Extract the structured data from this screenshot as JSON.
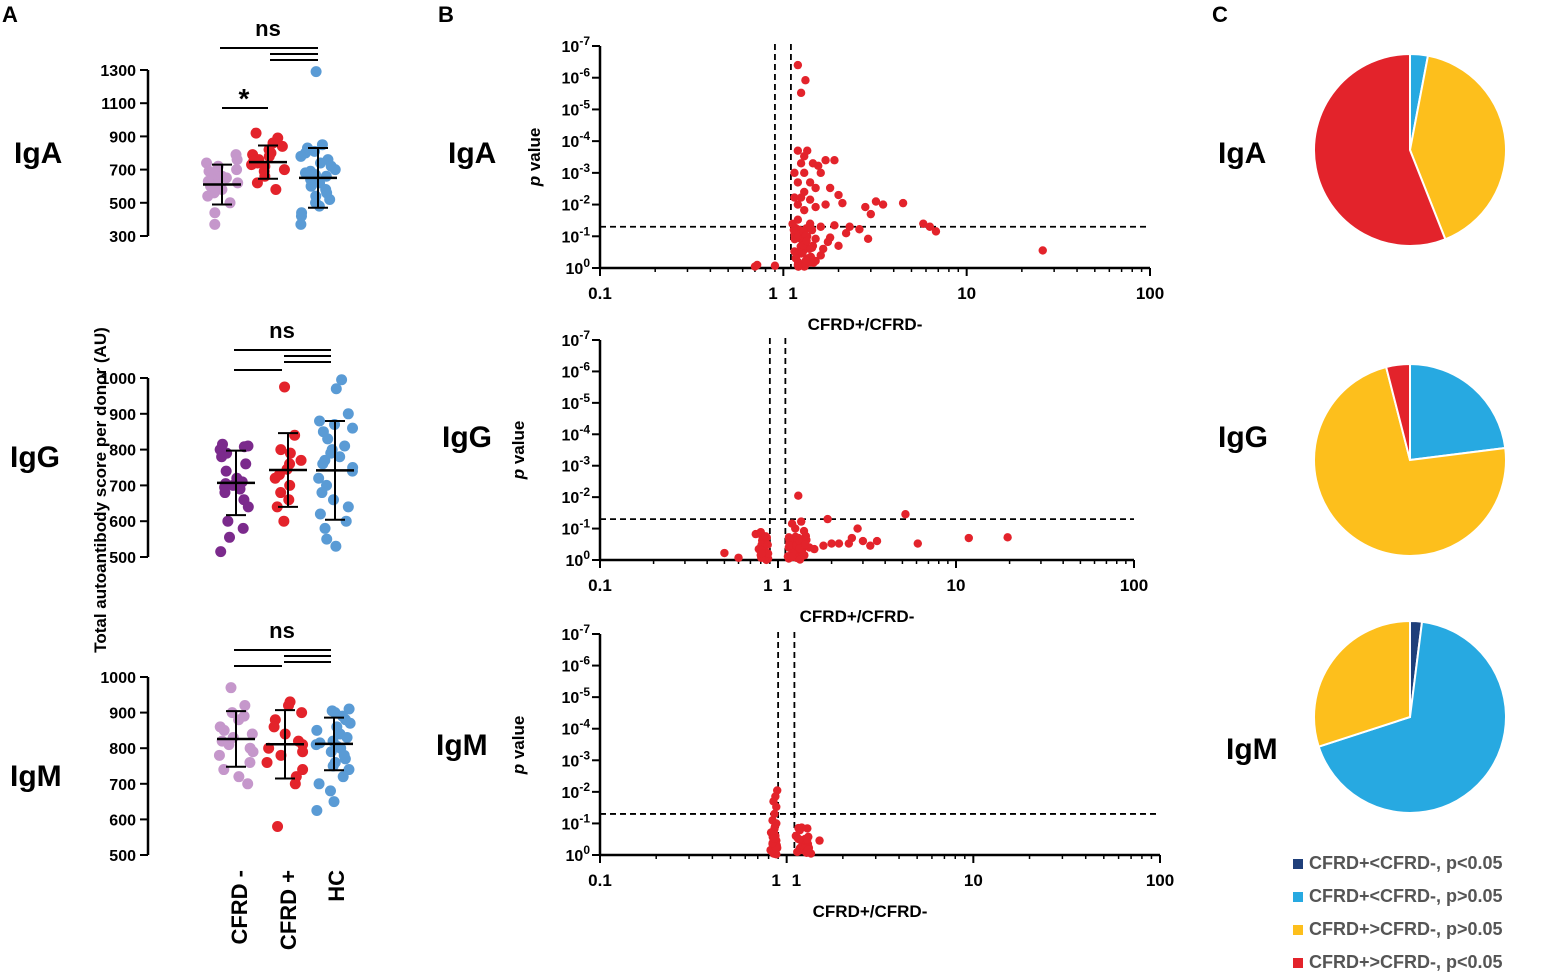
{
  "panels": {
    "a": "A",
    "b": "B",
    "c": "C"
  },
  "colors": {
    "cfrd_minus_iga_igm": "#c597cb",
    "cfrd_minus_igg": "#7b2a8c",
    "cfrd_plus": "#e3232b",
    "hc": "#5a9bd5",
    "pie_dark_blue": "#1f3f7a",
    "pie_light_blue": "#27a9e1",
    "pie_yellow": "#fdbf1c",
    "pie_red": "#e3232b",
    "volcano_point": "#e3232b"
  },
  "panel_a": {
    "y_axis_title": "Total autoantibody score per donor (AU)",
    "categories": [
      "CFRD -",
      "CFRD +",
      "HC"
    ]
  },
  "panel_b": {
    "y_axis_title_italic": "p",
    "y_axis_title_rest": " value",
    "x_axis_title": "CFRD+/CFRD-"
  },
  "legend": [
    {
      "label": "CFRD+<CFRD-, p<0.05",
      "color": "#1f3f7a"
    },
    {
      "label": "CFRD+<CFRD-, p>0.05",
      "color": "#27a9e1"
    },
    {
      "label": "CFRD+>CFRD-, p>0.05",
      "color": "#fdbf1c"
    },
    {
      "label": "CFRD+>CFRD-, p<0.05",
      "color": "#e3232b"
    }
  ],
  "chart_data": [
    {
      "type": "scatter",
      "panel": "A",
      "row_label": "IgA",
      "title": "IgA",
      "xlabel": "",
      "ylabel": "Total autoantibody score per donor (AU)",
      "categories": [
        "CFRD -",
        "CFRD +",
        "HC"
      ],
      "ylim": [
        300,
        1300
      ],
      "yticks": [
        300,
        500,
        700,
        900,
        1100,
        1300
      ],
      "series": [
        {
          "name": "CFRD -",
          "mean": 610,
          "sd": 120,
          "values": [
            790,
            760,
            740,
            720,
            700,
            690,
            680,
            660,
            650,
            640,
            630,
            620,
            610,
            600,
            580,
            560,
            540,
            500,
            440,
            370
          ]
        },
        {
          "name": "CFRD +",
          "mean": 745,
          "sd": 100,
          "values": [
            920,
            890,
            860,
            840,
            820,
            800,
            790,
            780,
            760,
            750,
            740,
            730,
            720,
            700,
            690,
            660,
            620,
            580
          ]
        },
        {
          "name": "HC",
          "mean": 650,
          "sd": 180,
          "values": [
            1290,
            850,
            830,
            810,
            800,
            780,
            760,
            740,
            720,
            700,
            690,
            680,
            670,
            660,
            640,
            620,
            600,
            580,
            560,
            540,
            520,
            500,
            480,
            440,
            420,
            370
          ]
        }
      ],
      "significance": [
        {
          "groups": [
            "CFRD -",
            "CFRD +"
          ],
          "label": "*"
        },
        {
          "groups": [
            "CFRD -",
            "HC"
          ],
          "label": "ns"
        },
        {
          "groups": [
            "CFRD +",
            "HC"
          ],
          "label": ""
        }
      ]
    },
    {
      "type": "scatter",
      "panel": "A",
      "row_label": "IgG",
      "title": "IgG",
      "xlabel": "",
      "ylabel": "Total autoantibody score per donor (AU)",
      "categories": [
        "CFRD -",
        "CFRD +",
        "HC"
      ],
      "ylim": [
        500,
        1000
      ],
      "yticks": [
        500,
        600,
        700,
        800,
        900,
        1000
      ],
      "series": [
        {
          "name": "CFRD -",
          "mean": 707,
          "sd": 90,
          "values": [
            815,
            810,
            808,
            800,
            790,
            780,
            760,
            740,
            720,
            710,
            705,
            700,
            695,
            690,
            680,
            660,
            640,
            600,
            580,
            555,
            515
          ]
        },
        {
          "name": "CFRD +",
          "mean": 743,
          "sd": 103,
          "values": [
            975,
            840,
            800,
            790,
            770,
            760,
            745,
            730,
            720,
            700,
            680,
            660,
            640,
            600
          ]
        },
        {
          "name": "HC",
          "mean": 742,
          "sd": 138,
          "values": [
            995,
            970,
            900,
            880,
            870,
            860,
            850,
            830,
            810,
            800,
            790,
            780,
            770,
            760,
            750,
            740,
            720,
            700,
            680,
            660,
            640,
            620,
            600,
            580,
            550,
            530
          ]
        }
      ],
      "significance": [
        {
          "groups": [
            "CFRD -",
            "HC"
          ],
          "label": "ns"
        },
        {
          "groups": [
            "CFRD -",
            "CFRD +"
          ],
          "label": ""
        },
        {
          "groups": [
            "CFRD +",
            "HC"
          ],
          "label": ""
        }
      ]
    },
    {
      "type": "scatter",
      "panel": "A",
      "row_label": "IgM",
      "title": "IgM",
      "xlabel": "",
      "ylabel": "Total autoantibody score per donor (AU)",
      "categories": [
        "CFRD -",
        "CFRD +",
        "HC"
      ],
      "ylim": [
        500,
        1000
      ],
      "yticks": [
        500,
        600,
        700,
        800,
        900,
        1000
      ],
      "series": [
        {
          "name": "CFRD -",
          "mean": 826,
          "sd": 78,
          "values": [
            970,
            920,
            900,
            890,
            880,
            860,
            850,
            840,
            830,
            820,
            810,
            800,
            790,
            780,
            760,
            740,
            720,
            700
          ]
        },
        {
          "name": "CFRD +",
          "mean": 811,
          "sd": 96,
          "values": [
            930,
            920,
            900,
            880,
            860,
            840,
            820,
            810,
            800,
            790,
            780,
            760,
            740,
            720,
            700,
            580
          ]
        },
        {
          "name": "HC",
          "mean": 812,
          "sd": 74,
          "values": [
            910,
            905,
            900,
            890,
            880,
            870,
            860,
            850,
            840,
            830,
            820,
            815,
            810,
            805,
            800,
            790,
            780,
            770,
            760,
            750,
            740,
            720,
            700,
            680,
            650,
            625
          ]
        }
      ],
      "significance": [
        {
          "groups": [
            "CFRD -",
            "HC"
          ],
          "label": "ns"
        },
        {
          "groups": [
            "CFRD -",
            "CFRD +"
          ],
          "label": ""
        },
        {
          "groups": [
            "CFRD +",
            "HC"
          ],
          "label": ""
        }
      ]
    },
    {
      "type": "scatter",
      "panel": "B",
      "row_label": "IgA",
      "title": "IgA",
      "xlabel": "CFRD+/CFRD-",
      "ylabel": "p value",
      "x_scale": "log",
      "xlim": [
        0.1,
        100
      ],
      "xticks": [
        "0.1",
        "1",
        "1",
        "10",
        "100"
      ],
      "y_scale": "-log10",
      "ylim": [
        1,
        1e-07
      ],
      "yticks": [
        "10^0",
        "10^-1",
        "10^-2",
        "10^-3",
        "10^-4",
        "10^-5",
        "10^-6",
        "10^-7"
      ],
      "threshold_p": 0.05,
      "threshold_fold": [
        0.9,
        1.1
      ],
      "points": [
        [
          0.7,
          0.9
        ],
        [
          0.72,
          0.8
        ],
        [
          0.9,
          0.85
        ],
        [
          1.32,
          1.2e-06
        ],
        [
          1.25,
          3e-06
        ],
        [
          1.2,
          4e-07
        ],
        [
          1.2,
          0.0002
        ],
        [
          1.3,
          0.0003
        ],
        [
          1.35,
          0.0002
        ],
        [
          1.45,
          0.0005
        ],
        [
          1.55,
          0.0006
        ],
        [
          1.7,
          0.0004
        ],
        [
          1.9,
          0.0004
        ],
        [
          1.25,
          0.0005
        ],
        [
          1.6,
          0.001
        ],
        [
          1.3,
          0.001
        ],
        [
          1.15,
          0.001
        ],
        [
          1.2,
          0.002
        ],
        [
          1.4,
          0.002
        ],
        [
          1.5,
          0.003
        ],
        [
          1.3,
          0.004
        ],
        [
          1.8,
          0.003
        ],
        [
          1.25,
          0.006
        ],
        [
          1.4,
          0.007
        ],
        [
          2.0,
          0.005
        ],
        [
          1.15,
          0.006
        ],
        [
          1.2,
          0.01
        ],
        [
          1.3,
          0.015
        ],
        [
          1.5,
          0.012
        ],
        [
          1.7,
          0.01
        ],
        [
          2.1,
          0.009
        ],
        [
          2.8,
          0.012
        ],
        [
          3.2,
          0.008
        ],
        [
          3.5,
          0.01
        ],
        [
          4.5,
          0.009
        ],
        [
          3.0,
          0.02
        ],
        [
          5.8,
          0.04
        ],
        [
          6.3,
          0.05
        ],
        [
          6.8,
          0.07
        ],
        [
          1.2,
          0.03
        ],
        [
          1.4,
          0.04
        ],
        [
          1.6,
          0.05
        ],
        [
          1.9,
          0.045
        ],
        [
          2.3,
          0.05
        ],
        [
          2.6,
          0.06
        ],
        [
          1.15,
          0.08
        ],
        [
          1.25,
          0.09
        ],
        [
          1.35,
          0.1
        ],
        [
          1.5,
          0.12
        ],
        [
          1.8,
          0.11
        ],
        [
          2.2,
          0.08
        ],
        [
          2.9,
          0.12
        ],
        [
          1.3,
          0.15
        ],
        [
          1.45,
          0.2
        ],
        [
          1.65,
          0.25
        ],
        [
          2.0,
          0.2
        ],
        [
          1.15,
          0.3
        ],
        [
          1.25,
          0.35
        ],
        [
          1.35,
          0.5
        ],
        [
          1.5,
          0.6
        ],
        [
          1.2,
          0.8
        ],
        [
          1.3,
          0.9
        ],
        [
          1.6,
          0.4
        ],
        [
          1.75,
          0.15
        ],
        [
          26,
          0.28
        ]
      ],
      "extra_points_approx": 40
    },
    {
      "type": "scatter",
      "panel": "B",
      "row_label": "IgG",
      "title": "IgG",
      "xlabel": "CFRD+/CFRD-",
      "ylabel": "p value",
      "x_scale": "log",
      "xlim": [
        0.1,
        100
      ],
      "xticks": [
        "0.1",
        "1",
        "1",
        "10",
        "100"
      ],
      "y_scale": "-log10",
      "ylim": [
        1,
        1e-07
      ],
      "yticks": [
        "10^0",
        "10^-1",
        "10^-2",
        "10^-3",
        "10^-4",
        "10^-5",
        "10^-6",
        "10^-7"
      ],
      "threshold_p": 0.05,
      "threshold_fold": [
        0.9,
        1.1
      ],
      "points": [
        [
          0.5,
          0.6
        ],
        [
          0.6,
          0.85
        ],
        [
          0.75,
          0.15
        ],
        [
          0.8,
          0.13
        ],
        [
          0.82,
          0.2
        ],
        [
          0.85,
          0.3
        ],
        [
          0.78,
          0.45
        ],
        [
          0.83,
          0.5
        ],
        [
          0.87,
          0.6
        ],
        [
          0.8,
          0.7
        ],
        [
          0.86,
          0.8
        ],
        [
          0.88,
          0.9
        ],
        [
          1.3,
          0.009
        ],
        [
          1.2,
          0.07
        ],
        [
          1.35,
          0.06
        ],
        [
          1.25,
          0.1
        ],
        [
          1.4,
          0.12
        ],
        [
          1.3,
          0.2
        ],
        [
          1.2,
          0.3
        ],
        [
          1.15,
          0.4
        ],
        [
          1.25,
          0.5
        ],
        [
          1.35,
          0.55
        ],
        [
          1.5,
          0.4
        ],
        [
          1.6,
          0.45
        ],
        [
          1.8,
          0.35
        ],
        [
          1.2,
          0.7
        ],
        [
          1.3,
          0.8
        ],
        [
          1.15,
          0.9
        ],
        [
          1.4,
          0.7
        ],
        [
          1.9,
          0.05
        ],
        [
          2.0,
          0.3
        ],
        [
          2.2,
          0.3
        ],
        [
          2.5,
          0.3
        ],
        [
          2.8,
          0.1
        ],
        [
          3.0,
          0.25
        ],
        [
          3.3,
          0.35
        ],
        [
          3.6,
          0.25
        ],
        [
          2.6,
          0.2
        ],
        [
          5.2,
          0.035
        ],
        [
          6.1,
          0.3
        ],
        [
          11.8,
          0.2
        ],
        [
          19.5,
          0.19
        ]
      ],
      "extra_points_approx": 40
    },
    {
      "type": "scatter",
      "panel": "B",
      "row_label": "IgM",
      "title": "IgM",
      "xlabel": "CFRD+/CFRD-",
      "ylabel": "p value",
      "x_scale": "log",
      "xlim": [
        0.1,
        100
      ],
      "xticks": [
        "0.1",
        "1",
        "1",
        "10",
        "100"
      ],
      "y_scale": "-log10",
      "ylim": [
        1,
        1e-07
      ],
      "yticks": [
        "10^0",
        "10^-1",
        "10^-2",
        "10^-3",
        "10^-4",
        "10^-5",
        "10^-6",
        "10^-7"
      ],
      "threshold_p": 0.05,
      "threshold_fold": [
        0.9,
        1.1
      ],
      "points": [
        [
          0.89,
          0.009
        ],
        [
          0.87,
          0.014
        ],
        [
          0.85,
          0.02
        ],
        [
          0.88,
          0.03
        ],
        [
          0.86,
          0.05
        ],
        [
          0.84,
          0.08
        ],
        [
          0.88,
          0.1
        ],
        [
          0.86,
          0.15
        ],
        [
          0.83,
          0.2
        ],
        [
          0.87,
          0.25
        ],
        [
          0.85,
          0.3
        ],
        [
          0.88,
          0.35
        ],
        [
          0.84,
          0.45
        ],
        [
          0.86,
          0.5
        ],
        [
          0.89,
          0.6
        ],
        [
          0.82,
          0.7
        ],
        [
          0.87,
          0.8
        ],
        [
          0.85,
          0.9
        ],
        [
          0.88,
          0.95
        ],
        [
          1.12,
          0.25
        ],
        [
          1.15,
          0.3
        ],
        [
          1.2,
          0.35
        ],
        [
          1.25,
          0.4
        ],
        [
          1.3,
          0.45
        ],
        [
          1.5,
          0.35
        ],
        [
          1.18,
          0.6
        ],
        [
          1.22,
          0.7
        ],
        [
          1.14,
          0.8
        ],
        [
          1.28,
          0.85
        ],
        [
          1.35,
          0.9
        ]
      ],
      "extra_points_approx": 30
    },
    {
      "type": "pie",
      "panel": "C",
      "row_label": "IgA",
      "title": "IgA",
      "labels": [
        "CFRD+<CFRD-, p<0.05",
        "CFRD+<CFRD-, p>0.05",
        "CFRD+>CFRD-, p>0.05",
        "CFRD+>CFRD-, p<0.05"
      ],
      "values": [
        0,
        3,
        41,
        56
      ]
    },
    {
      "type": "pie",
      "panel": "C",
      "row_label": "IgG",
      "title": "IgG",
      "labels": [
        "CFRD+<CFRD-, p<0.05",
        "CFRD+<CFRD-, p>0.05",
        "CFRD+>CFRD-, p>0.05",
        "CFRD+>CFRD-, p<0.05"
      ],
      "values": [
        0,
        23,
        73,
        4
      ]
    },
    {
      "type": "pie",
      "panel": "C",
      "row_label": "IgM",
      "title": "IgM",
      "labels": [
        "CFRD+<CFRD-, p<0.05",
        "CFRD+<CFRD-, p>0.05",
        "CFRD+>CFRD-, p>0.05",
        "CFRD+>CFRD-, p<0.05"
      ],
      "values": [
        2,
        68,
        30,
        0
      ]
    }
  ]
}
